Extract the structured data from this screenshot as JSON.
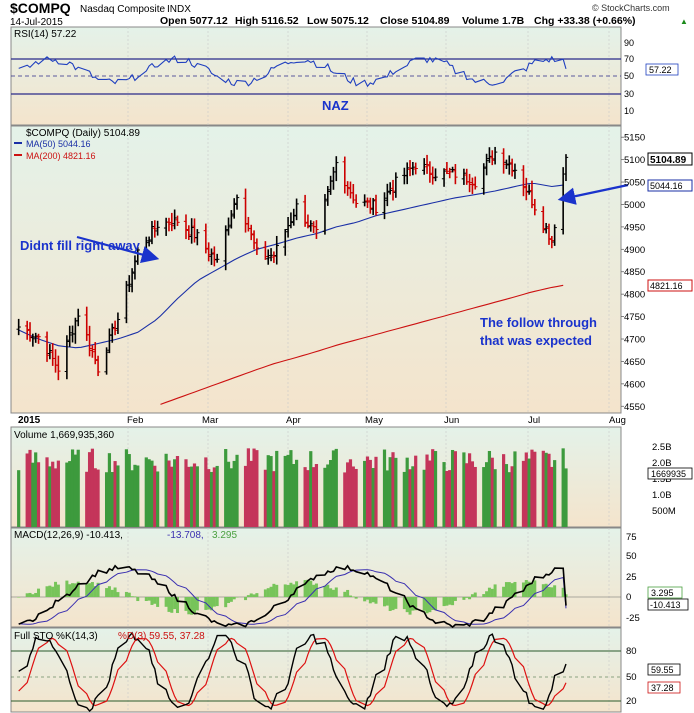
{
  "header": {
    "symbol": "$COMPQ",
    "name": "Nasdaq Composite",
    "exchange": "INDX",
    "date": "14-Jul-2015",
    "open": "Open 5077.12",
    "high": "High 5116.52",
    "low": "Low 5075.12",
    "close": "Close 5104.89",
    "volume": "Volume 1.7B",
    "change": "Chg +33.38 (+0.66%)",
    "change_arrow": "▲",
    "brand": "© StockCharts.com"
  },
  "rsi": {
    "title": "RSI(14) 57.22",
    "value_label": "57.22",
    "ticks": [
      "90",
      "70",
      "50",
      "30",
      "10"
    ],
    "annotation": "NAZ"
  },
  "price": {
    "title": "$COMPQ (Daily) 5104.89",
    "ma50_label": "MA(50) 5044.16",
    "ma200_label": "MA(200) 4821.16",
    "close_label": "5104.89",
    "ma50_value_label": "5044.16",
    "ma200_value_label": "4821.16",
    "ticks": [
      "5150",
      "5100",
      "5050",
      "5000",
      "4950",
      "4900",
      "4850",
      "4800",
      "4750",
      "4700",
      "4650",
      "4600",
      "4550"
    ],
    "annotation1": "Didnt fill right away",
    "annotation2_line1": "The follow through",
    "annotation2_line2": "that was expected"
  },
  "xaxis": {
    "labels": [
      "2015",
      "Feb",
      "Mar",
      "Apr",
      "May",
      "Jun",
      "Jul",
      "Aug"
    ]
  },
  "volume": {
    "title": "Volume 1,669,935,360",
    "value_label": "1669935",
    "ticks": [
      "2.5B",
      "2.0B",
      "1.5B",
      "1.0B",
      "500M"
    ]
  },
  "macd": {
    "title": "MACD(12,26,9) -10.413, -13.708, 3.295",
    "macd_title": "MACD(12,26,9) -10.413,",
    "signal_title": "-13.708,",
    "hist_title": "3.295",
    "hist_label": "3.295",
    "macd_label": "-10.413",
    "ticks": [
      "75",
      "50",
      "25",
      "0",
      "-25"
    ]
  },
  "sto": {
    "title": "Full STO %K(14,3) %D(3) 59.55, 37.28",
    "k_title": "Full STO %K(14,3)",
    "d_title": "%D(3) 59.55, 37.28",
    "k_label": "59.55",
    "d_label": "37.28",
    "ticks": [
      "80",
      "50",
      "20"
    ]
  },
  "colors": {
    "panel_bg_top": "#e4f2e9",
    "panel_bg_bottom": "#f4e4cc",
    "up": "#000000",
    "down": "#cc0000",
    "ma50": "#1a2fa6",
    "ma200": "#cc1111",
    "rsi": "#1f3fbf",
    "annotation": "#1a33cc",
    "vol_up": "#3d9a3d",
    "vol_down": "#c4355a",
    "macd_hist": "#77c45a"
  },
  "chart_data": {
    "type": "line",
    "title": "$COMPQ (Daily) 5104.89",
    "date_range": [
      "2014-12-31",
      "2015-07-14"
    ],
    "x": [
      "2015-01-02",
      "2015-01-09",
      "2015-01-16",
      "2015-01-23",
      "2015-01-30",
      "2015-02-06",
      "2015-02-13",
      "2015-02-20",
      "2015-02-27",
      "2015-03-06",
      "2015-03-13",
      "2015-03-20",
      "2015-03-27",
      "2015-04-02",
      "2015-04-10",
      "2015-04-17",
      "2015-04-24",
      "2015-05-01",
      "2015-05-08",
      "2015-05-15",
      "2015-05-22",
      "2015-05-29",
      "2015-06-05",
      "2015-06-12",
      "2015-06-19",
      "2015-06-26",
      "2015-07-02",
      "2015-07-09",
      "2015-07-14"
    ],
    "series": [
      {
        "name": "$COMPQ (Daily) 5104.89",
        "values": [
          4727,
          4705,
          4634,
          4758,
          4635,
          4745,
          4894,
          4956,
          4964,
          4927,
          4871,
          5026,
          4891,
          4886,
          4995,
          4932,
          5092,
          5005,
          4995,
          5048,
          5090,
          5070,
          5068,
          5052,
          5117,
          5080,
          5009,
          4922,
          5105
        ]
      },
      {
        "name": "MA(50) 5044.16",
        "values": [
          4720,
          4700,
          4685,
          4680,
          4690,
          4700,
          4715,
          4745,
          4790,
          4830,
          4855,
          4880,
          4900,
          4910,
          4925,
          4935,
          4950,
          4960,
          4975,
          4985,
          4995,
          5005,
          5015,
          5022,
          5030,
          5040,
          5048,
          5040,
          5044
        ]
      },
      {
        "name": "MA(200) 4821.16",
        "values": [
          null,
          null,
          null,
          null,
          null,
          null,
          null,
          4552,
          4568,
          4584,
          4600,
          4616,
          4632,
          4645,
          4659,
          4672,
          4686,
          4698,
          4710,
          4722,
          4734,
          4746,
          4758,
          4770,
          4782,
          4794,
          4805,
          4815,
          4821
        ]
      }
    ],
    "ylim": [
      4535,
      5175
    ],
    "annotations": [
      "Didnt fill right away",
      "The follow through that was expected"
    ],
    "indicators": {
      "rsi_14_last": 57.22,
      "volume_last": 1669935360,
      "macd_12_26_9_last": [
        -10.413,
        -13.708,
        3.295
      ],
      "full_sto_14_3_3_last": [
        59.55,
        37.28
      ]
    }
  }
}
